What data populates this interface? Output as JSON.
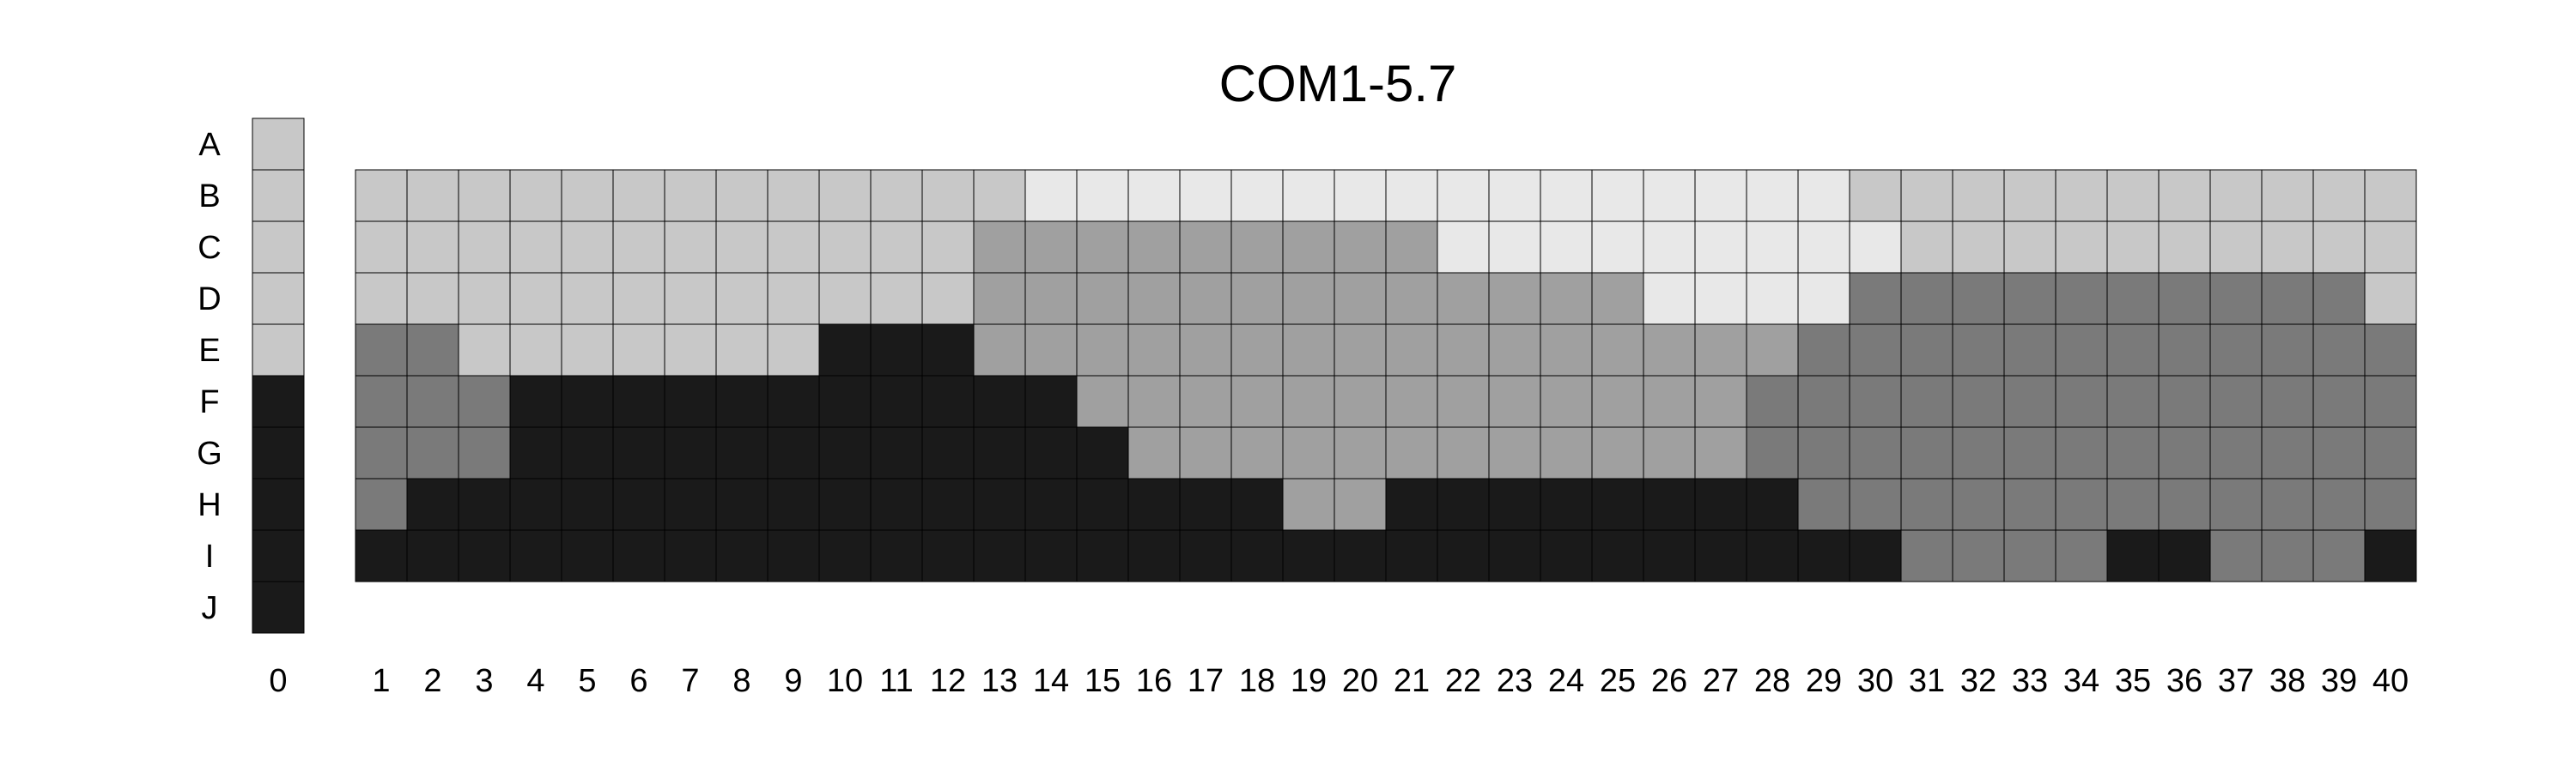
{
  "chart_data": {
    "type": "heatmap",
    "title": "COM1-5.7",
    "rows": [
      "A",
      "B",
      "C",
      "D",
      "E",
      "F",
      "G",
      "H",
      "I",
      "J"
    ],
    "reference_column": {
      "label": "0",
      "values": [
        2,
        2,
        2,
        2,
        2,
        5,
        5,
        5,
        5,
        5
      ]
    },
    "columns": [
      "1",
      "2",
      "3",
      "4",
      "5",
      "6",
      "7",
      "8",
      "9",
      "10",
      "11",
      "12",
      "13",
      "14",
      "15",
      "16",
      "17",
      "18",
      "19",
      "20",
      "21",
      "22",
      "23",
      "24",
      "25",
      "26",
      "27",
      "28",
      "29",
      "30",
      "31",
      "32",
      "33",
      "34",
      "35",
      "36",
      "37",
      "38",
      "39",
      "40"
    ],
    "grid_rows": [
      "B",
      "C",
      "D",
      "E",
      "F",
      "G",
      "H",
      "I"
    ],
    "grid_values": [
      [
        2,
        2,
        2,
        2,
        2,
        2,
        2,
        2,
        2,
        2,
        2,
        2,
        2,
        1,
        1,
        1,
        1,
        1,
        1,
        1,
        1,
        1,
        1,
        1,
        1,
        1,
        1,
        1,
        1,
        2,
        2,
        2,
        2,
        2,
        2,
        2,
        2,
        2,
        2,
        2
      ],
      [
        2,
        2,
        2,
        2,
        2,
        2,
        2,
        2,
        2,
        2,
        2,
        2,
        3,
        3,
        3,
        3,
        3,
        3,
        3,
        3,
        3,
        1,
        1,
        1,
        1,
        1,
        1,
        1,
        1,
        1,
        2,
        2,
        2,
        2,
        2,
        2,
        2,
        2,
        2,
        2
      ],
      [
        2,
        2,
        2,
        2,
        2,
        2,
        2,
        2,
        2,
        2,
        2,
        2,
        3,
        3,
        3,
        3,
        3,
        3,
        3,
        3,
        3,
        3,
        3,
        3,
        3,
        1,
        1,
        1,
        1,
        4,
        4,
        4,
        4,
        4,
        4,
        4,
        4,
        4,
        4,
        2
      ],
      [
        4,
        4,
        2,
        2,
        2,
        2,
        2,
        2,
        2,
        5,
        5,
        5,
        3,
        3,
        3,
        3,
        3,
        3,
        3,
        3,
        3,
        3,
        3,
        3,
        3,
        3,
        3,
        3,
        4,
        4,
        4,
        4,
        4,
        4,
        4,
        4,
        4,
        4,
        4,
        4
      ],
      [
        4,
        4,
        4,
        5,
        5,
        5,
        5,
        5,
        5,
        5,
        5,
        5,
        5,
        5,
        3,
        3,
        3,
        3,
        3,
        3,
        3,
        3,
        3,
        3,
        3,
        3,
        3,
        4,
        4,
        4,
        4,
        4,
        4,
        4,
        4,
        4,
        4,
        4,
        4,
        4
      ],
      [
        4,
        4,
        4,
        5,
        5,
        5,
        5,
        5,
        5,
        5,
        5,
        5,
        5,
        5,
        5,
        3,
        3,
        3,
        3,
        3,
        3,
        3,
        3,
        3,
        3,
        3,
        3,
        4,
        4,
        4,
        4,
        4,
        4,
        4,
        4,
        4,
        4,
        4,
        4,
        4
      ],
      [
        4,
        5,
        5,
        5,
        5,
        5,
        5,
        5,
        5,
        5,
        5,
        5,
        5,
        5,
        5,
        5,
        5,
        5,
        3,
        3,
        5,
        5,
        5,
        5,
        5,
        5,
        5,
        5,
        4,
        4,
        4,
        4,
        4,
        4,
        4,
        4,
        4,
        4,
        4,
        4
      ],
      [
        5,
        5,
        5,
        5,
        5,
        5,
        5,
        5,
        5,
        5,
        5,
        5,
        5,
        5,
        5,
        5,
        5,
        5,
        5,
        5,
        5,
        5,
        5,
        5,
        5,
        5,
        5,
        5,
        5,
        5,
        4,
        4,
        4,
        4,
        5,
        5,
        4,
        4,
        4,
        5
      ]
    ],
    "color_scale": {
      "1": "#e8e8e8",
      "2": "#c8c8c8",
      "3": "#a0a0a0",
      "4": "#7a7a7a",
      "5": "#1a1a1a"
    },
    "grid": true,
    "legend": "none"
  }
}
